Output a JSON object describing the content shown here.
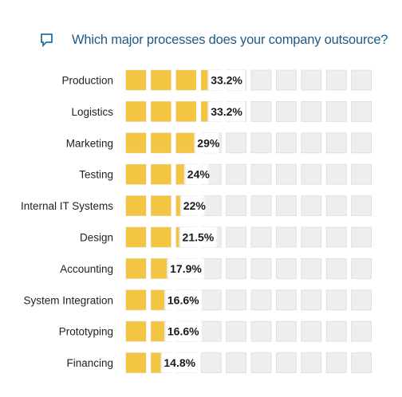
{
  "chart_data": {
    "type": "bar",
    "title": "Which major processes does your company outsource?",
    "categories": [
      "Production",
      "Logistics",
      "Marketing",
      "Testing",
      "Internal IT Systems",
      "Design",
      "Accounting",
      "System Integration",
      "Prototyping",
      "Financing"
    ],
    "values": [
      33.2,
      33.2,
      29,
      24,
      22,
      21.5,
      17.9,
      16.6,
      16.6,
      14.8
    ],
    "value_labels": [
      "33.2%",
      "33.2%",
      "29%",
      "24%",
      "22%",
      "21.5%",
      "17.9%",
      "16.6%",
      "16.6%",
      "14.8%"
    ],
    "xlim": [
      0,
      100
    ],
    "cells_per_row": 10,
    "unit": "%",
    "legend": "none",
    "grid": false
  },
  "colors": {
    "bar": "#f4c542",
    "empty_cell": "#eeeeee",
    "empty_cell_border": "#dcdcdc",
    "title": "#1f5a85",
    "icon": "#2a6f9a"
  },
  "icons": {
    "title_icon": "chat-bubble-icon"
  }
}
